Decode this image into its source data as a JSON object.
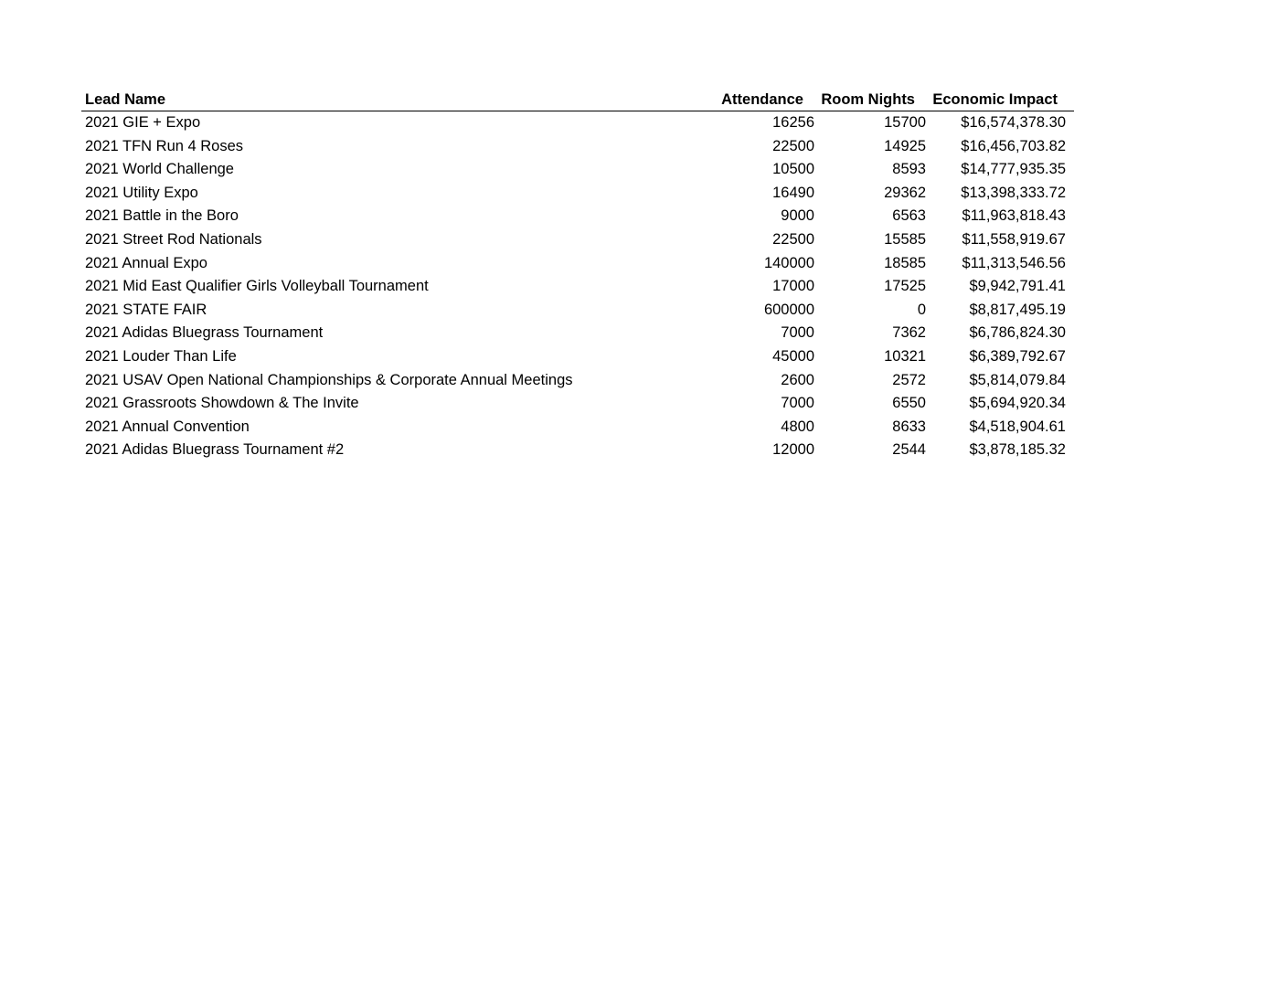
{
  "table": {
    "headers": [
      "Lead Name",
      "Attendance",
      "Room Nights",
      "Economic Impact"
    ],
    "rows": [
      [
        "2021 GIE + Expo",
        "16256",
        "15700",
        "$16,574,378.30"
      ],
      [
        "2021 TFN Run 4 Roses",
        "22500",
        "14925",
        "$16,456,703.82"
      ],
      [
        "2021 World Challenge",
        "10500",
        "8593",
        "$14,777,935.35"
      ],
      [
        "2021 Utility Expo",
        "16490",
        "29362",
        "$13,398,333.72"
      ],
      [
        "2021 Battle in the Boro",
        "9000",
        "6563",
        "$11,963,818.43"
      ],
      [
        "2021 Street Rod Nationals",
        "22500",
        "15585",
        "$11,558,919.67"
      ],
      [
        "2021 Annual Expo",
        "140000",
        "18585",
        "$11,313,546.56"
      ],
      [
        "2021 Mid East Qualifier Girls Volleyball Tournament",
        "17000",
        "17525",
        "$9,942,791.41"
      ],
      [
        "2021 STATE FAIR",
        "600000",
        "0",
        "$8,817,495.19"
      ],
      [
        "2021 Adidas Bluegrass Tournament",
        "7000",
        "7362",
        "$6,786,824.30"
      ],
      [
        "2021 Louder Than Life",
        "45000",
        "10321",
        "$6,389,792.67"
      ],
      [
        "2021 USAV Open National Championships & Corporate Annual Meetings",
        "2600",
        "2572",
        "$5,814,079.84"
      ],
      [
        "2021 Grassroots Showdown & The Invite",
        "7000",
        "6550",
        "$5,694,920.34"
      ],
      [
        "2021 Annual Convention",
        "4800",
        "8633",
        "$4,518,904.61"
      ],
      [
        "2021 Adidas Bluegrass Tournament #2",
        "12000",
        "2544",
        "$3,878,185.32"
      ]
    ]
  }
}
